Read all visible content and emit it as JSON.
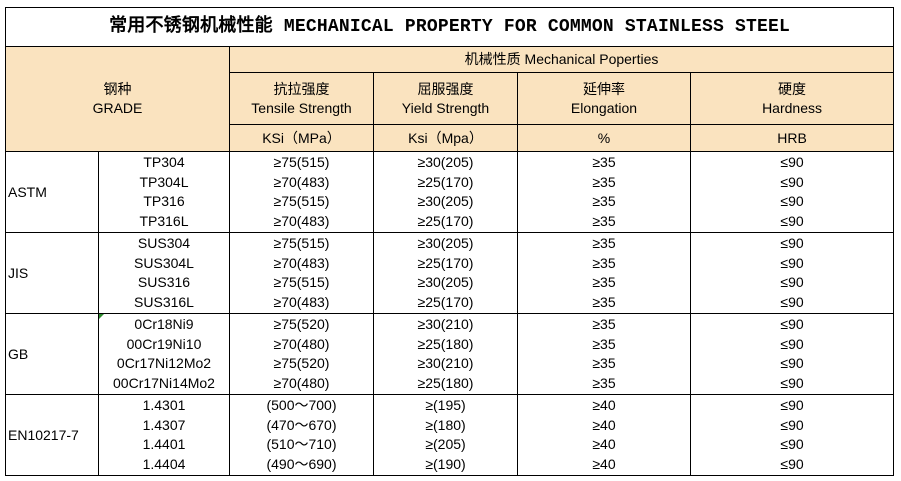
{
  "title": "常用不锈钢机械性能 MECHANICAL PROPERTY FOR COMMON STAINLESS STEEL",
  "header": {
    "grade_cn": "钢种",
    "grade_en": "GRADE",
    "group": "机械性质 Mechanical Poperties",
    "columns": [
      {
        "cn": "抗拉强度",
        "en": "Tensile Strength",
        "unit": "KSi（MPa）"
      },
      {
        "cn": "屈服强度",
        "en": "Yield Strength",
        "unit": "Ksi（Mpa）"
      },
      {
        "cn": "延伸率",
        "en": "Elongation",
        "unit": "%"
      },
      {
        "cn": "硬度",
        "en": "Hardness",
        "unit": "HRB"
      }
    ]
  },
  "groups": [
    {
      "standard": "ASTM",
      "grades": [
        "TP304",
        "TP304L",
        "TP316",
        "TP316L"
      ],
      "tensile": [
        "≥75(515)",
        "≥70(483)",
        "≥75(515)",
        "≥70(483)"
      ],
      "yield": [
        "≥30(205)",
        "≥25(170)",
        "≥30(205)",
        "≥25(170)"
      ],
      "elongation": [
        "≥35",
        "≥35",
        "≥35",
        "≥35"
      ],
      "hardness": [
        "≤90",
        "≤90",
        "≤90",
        "≤90"
      ]
    },
    {
      "standard": "JIS",
      "grades": [
        "SUS304",
        "SUS304L",
        "SUS316",
        "SUS316L"
      ],
      "tensile": [
        "≥75(515)",
        "≥70(483)",
        "≥75(515)",
        "≥70(483)"
      ],
      "yield": [
        "≥30(205)",
        "≥25(170)",
        "≥30(205)",
        "≥25(170)"
      ],
      "elongation": [
        "≥35",
        "≥35",
        "≥35",
        "≥35"
      ],
      "hardness": [
        "≤90",
        "≤90",
        "≤90",
        "≤90"
      ]
    },
    {
      "standard": "GB",
      "grades": [
        "0Cr18Ni9",
        "00Cr19Ni10",
        "0Cr17Ni12Mo2",
        "00Cr17Ni14Mo2"
      ],
      "tensile": [
        "≥75(520)",
        "≥70(480)",
        "≥75(520)",
        "≥70(480)"
      ],
      "yield": [
        "≥30(210)",
        "≥25(180)",
        "≥30(210)",
        "≥25(180)"
      ],
      "elongation": [
        "≥35",
        "≥35",
        "≥35",
        "≥35"
      ],
      "hardness": [
        "≤90",
        "≤90",
        "≤90",
        "≤90"
      ]
    },
    {
      "standard": "EN10217-7",
      "grades": [
        "1.4301",
        "1.4307",
        "1.4401",
        "1.4404"
      ],
      "tensile": [
        "(500～700)",
        "(470～670)",
        "(510～710)",
        "(490～690)"
      ],
      "yield": [
        "≥(195)",
        "≥(180)",
        "≥(205)",
        "≥(190)"
      ],
      "elongation": [
        "≥40",
        "≥40",
        "≥40",
        "≥40"
      ],
      "hardness": [
        "≤90",
        "≤90",
        "≤90",
        "≤90"
      ]
    }
  ],
  "colors": {
    "header_bg": "#fae3bf",
    "border": "#000000"
  }
}
